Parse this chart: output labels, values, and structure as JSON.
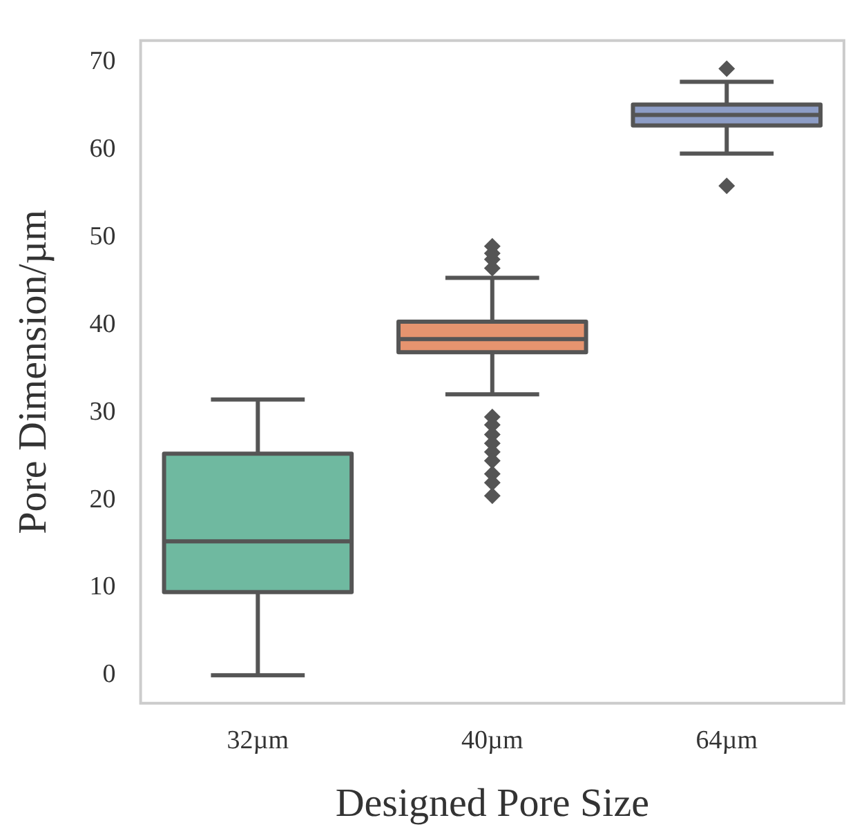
{
  "chart_data": {
    "type": "box",
    "xlabel": "Designed Pore Size",
    "ylabel": "Pore Dimension/µm",
    "categories": [
      "32µm",
      "40µm",
      "64µm"
    ],
    "colors": [
      "#6fb9a0",
      "#e6946f",
      "#8d9dc6"
    ],
    "boxes": [
      {
        "low": 0,
        "q1": 9.5,
        "median": 15.3,
        "q3": 25.3,
        "high": 31.5
      },
      {
        "low": 32.1,
        "q1": 36.9,
        "median": 38.4,
        "q3": 40.4,
        "high": 45.4,
        "outliers": [
          46.5,
          47.5,
          48.2,
          49,
          29.5,
          28.6,
          27.5,
          26.5,
          25.5,
          24.5,
          23,
          22,
          20.5
        ]
      },
      {
        "low": 59.6,
        "q1": 62.8,
        "median": 64,
        "q3": 65.2,
        "high": 67.8,
        "outliers": [
          69.3,
          55.9
        ]
      }
    ],
    "ylim": [
      -3.2,
      72.5
    ],
    "yticks": [
      0,
      10,
      20,
      30,
      40,
      50,
      60,
      70
    ],
    "grid": false,
    "marker": "diamond"
  }
}
